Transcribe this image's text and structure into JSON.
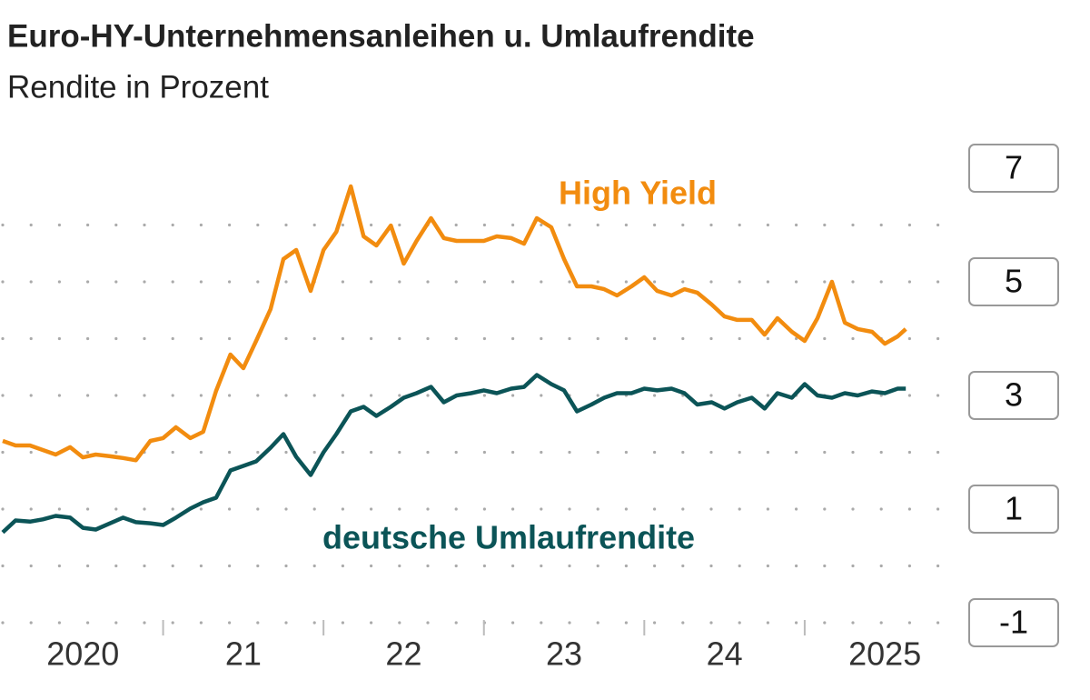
{
  "chart_data": {
    "type": "line",
    "title": "Euro-HY-Unternehmensanleihen u. Umlaufrendite",
    "subtitle": "Rendite in Prozent",
    "x": [
      2020.0,
      2020.08,
      2020.17,
      2020.25,
      2020.33,
      2020.42,
      2020.5,
      2020.58,
      2020.67,
      2020.75,
      2020.83,
      2020.92,
      2021.0,
      2021.08,
      2021.17,
      2021.25,
      2021.33,
      2021.42,
      2021.5,
      2021.58,
      2021.67,
      2021.75,
      2021.83,
      2021.92,
      2022.0,
      2022.08,
      2022.17,
      2022.25,
      2022.33,
      2022.42,
      2022.5,
      2022.58,
      2022.67,
      2022.75,
      2022.83,
      2022.92,
      2023.0,
      2023.08,
      2023.17,
      2023.25,
      2023.33,
      2023.42,
      2023.5,
      2023.58,
      2023.67,
      2023.75,
      2023.83,
      2023.92,
      2024.0,
      2024.08,
      2024.17,
      2024.25,
      2024.33,
      2024.42,
      2024.5,
      2024.58,
      2024.67,
      2024.75,
      2024.83,
      2024.92,
      2025.0,
      2025.08,
      2025.17,
      2025.25,
      2025.33,
      2025.42,
      2025.5,
      2025.58,
      2025.63
    ],
    "series": [
      {
        "name": "High Yield",
        "color": "#f28c0f",
        "values": [
          2.2,
          2.12,
          2.12,
          2.04,
          1.96,
          2.09,
          1.91,
          1.96,
          1.93,
          1.9,
          1.86,
          2.2,
          2.25,
          2.44,
          2.25,
          2.36,
          3.08,
          3.72,
          3.48,
          3.96,
          4.52,
          5.4,
          5.56,
          4.84,
          5.56,
          5.88,
          6.68,
          5.8,
          5.64,
          5.99,
          5.32,
          5.72,
          6.12,
          5.77,
          5.72,
          5.72,
          5.72,
          5.8,
          5.77,
          5.67,
          6.12,
          5.96,
          5.4,
          4.92,
          4.92,
          4.87,
          4.76,
          4.92,
          5.08,
          4.84,
          4.76,
          4.87,
          4.81,
          4.6,
          4.39,
          4.33,
          4.33,
          4.07,
          4.36,
          4.12,
          3.96,
          4.36,
          5.0,
          4.28,
          4.17,
          4.12,
          3.91,
          4.04,
          4.17
        ]
      },
      {
        "name": "deutsche Umlaufrendite",
        "color": "#0b5457",
        "values": [
          0.59,
          0.8,
          0.78,
          0.82,
          0.88,
          0.85,
          0.67,
          0.64,
          0.75,
          0.85,
          0.77,
          0.75,
          0.72,
          0.85,
          1.01,
          1.12,
          1.2,
          1.68,
          1.76,
          1.84,
          2.08,
          2.32,
          1.92,
          1.6,
          2.0,
          2.32,
          2.72,
          2.8,
          2.64,
          2.8,
          2.96,
          3.04,
          3.15,
          2.88,
          3.0,
          3.04,
          3.09,
          3.04,
          3.12,
          3.15,
          3.36,
          3.2,
          3.09,
          2.72,
          2.84,
          2.96,
          3.04,
          3.04,
          3.12,
          3.09,
          3.12,
          3.04,
          2.84,
          2.88,
          2.77,
          2.88,
          2.96,
          2.77,
          3.04,
          2.96,
          3.2,
          3.0,
          2.96,
          3.04,
          3.0,
          3.07,
          3.04,
          3.12,
          3.12
        ]
      }
    ],
    "xlim": [
      2020,
      2025.85
    ],
    "xticks": [
      {
        "value": 2020.5,
        "label": "2020"
      },
      {
        "value": 2021.5,
        "label": "21"
      },
      {
        "value": 2022.5,
        "label": "22"
      },
      {
        "value": 2023.5,
        "label": "23"
      },
      {
        "value": 2024.5,
        "label": "24"
      },
      {
        "value": 2025.5,
        "label": "2025"
      }
    ],
    "ylim": [
      -1,
      7
    ],
    "yticks": [
      -1,
      1,
      3,
      5,
      7
    ],
    "grid": true
  }
}
